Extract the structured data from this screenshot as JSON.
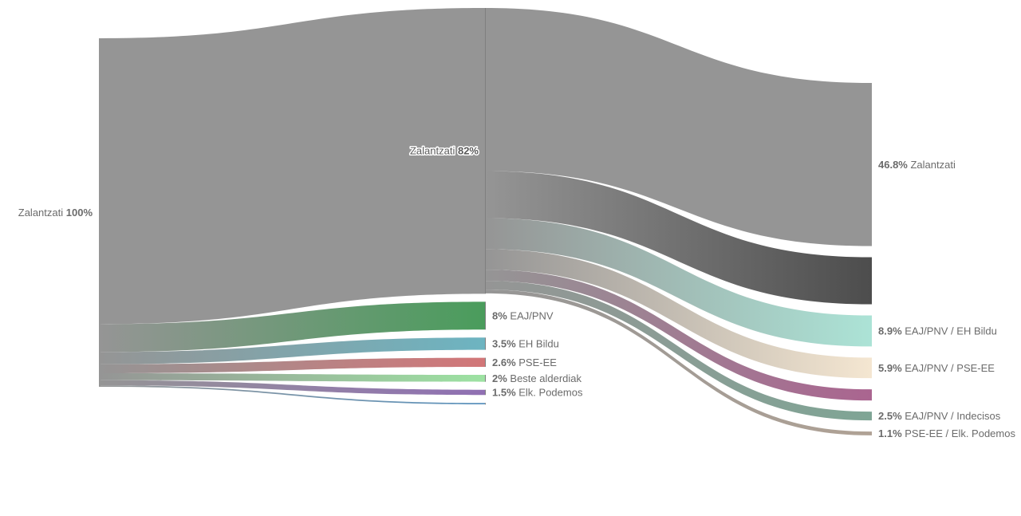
{
  "chart_data": {
    "type": "sankey",
    "title": "",
    "columns": [
      [
        {
          "id": "s0",
          "label": "Zalantzati",
          "pct": "100%",
          "value": 100,
          "color": "#959595"
        }
      ],
      [
        {
          "id": "m0",
          "label": "Zalantzati",
          "pct": "82%",
          "value": 82,
          "color": "#959595"
        },
        {
          "id": "m1",
          "label": "EAJ/PNV",
          "pct": "8%",
          "value": 8,
          "color": "#4a9c5c"
        },
        {
          "id": "m2",
          "label": "EH Bildu",
          "pct": "3.5%",
          "value": 3.5,
          "color": "#6db4c1"
        },
        {
          "id": "m3",
          "label": "PSE-EE",
          "pct": "2.6%",
          "value": 2.6,
          "color": "#d27678"
        },
        {
          "id": "m4",
          "label": "Beste alderdiak",
          "pct": "2%",
          "value": 2,
          "color": "#9de2a2"
        },
        {
          "id": "m5",
          "label": "Elk. Podemos",
          "pct": "1.5%",
          "value": 1.5,
          "color": "#9070b3"
        },
        {
          "id": "m6",
          "label": "",
          "pct": "",
          "value": 0.4,
          "color": "#5a92bd"
        }
      ],
      [
        {
          "id": "r0",
          "label": "Zalantzati",
          "pct": "46.8%",
          "value": 46.8,
          "color": "#959595"
        },
        {
          "id": "r1",
          "label": "",
          "pct": "",
          "value": 13.5,
          "color": "#4d4d4d"
        },
        {
          "id": "r2",
          "label": "EAJ/PNV / EH Bildu",
          "pct": "8.9%",
          "value": 8.9,
          "color": "#ace3d6"
        },
        {
          "id": "r3",
          "label": "EAJ/PNV / PSE-EE",
          "pct": "5.9%",
          "value": 5.9,
          "color": "#f4e6d1"
        },
        {
          "id": "r4",
          "label": "",
          "pct": "",
          "value": 3.2,
          "color": "#aa6590"
        },
        {
          "id": "r5",
          "label": "EAJ/PNV / Indecisos",
          "pct": "2.5%",
          "value": 2.5,
          "color": "#7fa595"
        },
        {
          "id": "r6",
          "label": "PSE-EE / Elk. Podemos",
          "pct": "1.1%",
          "value": 1.1,
          "color": "#b0a295"
        }
      ]
    ],
    "links": [
      {
        "source": "s0",
        "target": "m0",
        "value": 82
      },
      {
        "source": "s0",
        "target": "m1",
        "value": 8
      },
      {
        "source": "s0",
        "target": "m2",
        "value": 3.5
      },
      {
        "source": "s0",
        "target": "m3",
        "value": 2.6
      },
      {
        "source": "s0",
        "target": "m4",
        "value": 2
      },
      {
        "source": "s0",
        "target": "m5",
        "value": 1.5
      },
      {
        "source": "s0",
        "target": "m6",
        "value": 0.4
      },
      {
        "source": "m0",
        "target": "r0",
        "value": 46.8
      },
      {
        "source": "m0",
        "target": "r1",
        "value": 13.5
      },
      {
        "source": "m0",
        "target": "r2",
        "value": 8.9
      },
      {
        "source": "m0",
        "target": "r3",
        "value": 5.9
      },
      {
        "source": "m0",
        "target": "r4",
        "value": 3.2
      },
      {
        "source": "m0",
        "target": "r5",
        "value": 2.5
      },
      {
        "source": "m0",
        "target": "r6",
        "value": 1.1
      }
    ]
  }
}
